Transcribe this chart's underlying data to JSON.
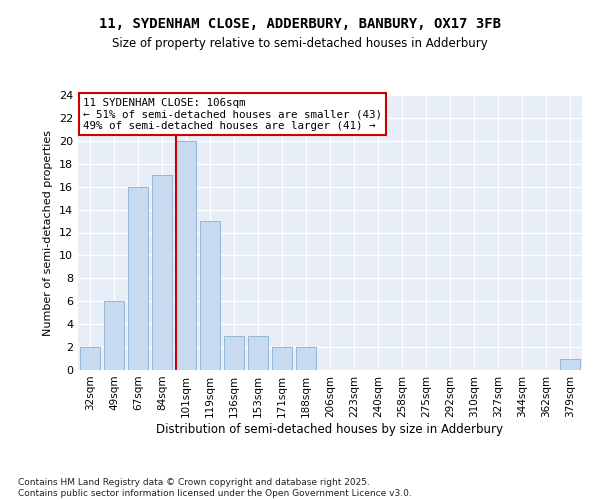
{
  "title_line1": "11, SYDENHAM CLOSE, ADDERBURY, BANBURY, OX17 3FB",
  "title_line2": "Size of property relative to semi-detached houses in Adderbury",
  "xlabel": "Distribution of semi-detached houses by size in Adderbury",
  "ylabel": "Number of semi-detached properties",
  "categories": [
    "32sqm",
    "49sqm",
    "67sqm",
    "84sqm",
    "101sqm",
    "119sqm",
    "136sqm",
    "153sqm",
    "171sqm",
    "188sqm",
    "206sqm",
    "223sqm",
    "240sqm",
    "258sqm",
    "275sqm",
    "292sqm",
    "310sqm",
    "327sqm",
    "344sqm",
    "362sqm",
    "379sqm"
  ],
  "values": [
    2,
    6,
    16,
    17,
    20,
    13,
    3,
    3,
    2,
    2,
    0,
    0,
    0,
    0,
    0,
    0,
    0,
    0,
    0,
    0,
    1
  ],
  "bar_color": "#c8daf0",
  "bar_edgecolor": "#90b8d8",
  "property_line_index": 4,
  "property_label": "11 SYDENHAM CLOSE: 106sqm",
  "smaller_pct": 51,
  "smaller_count": 43,
  "larger_pct": 49,
  "larger_count": 41,
  "vline_color": "#cc0000",
  "ylim_max": 24,
  "ytick_step": 2,
  "plot_bg_color": "#e8eef8",
  "grid_color": "#ffffff",
  "fig_bg_color": "#ffffff",
  "footer": "Contains HM Land Registry data © Crown copyright and database right 2025.\nContains public sector information licensed under the Open Government Licence v3.0."
}
